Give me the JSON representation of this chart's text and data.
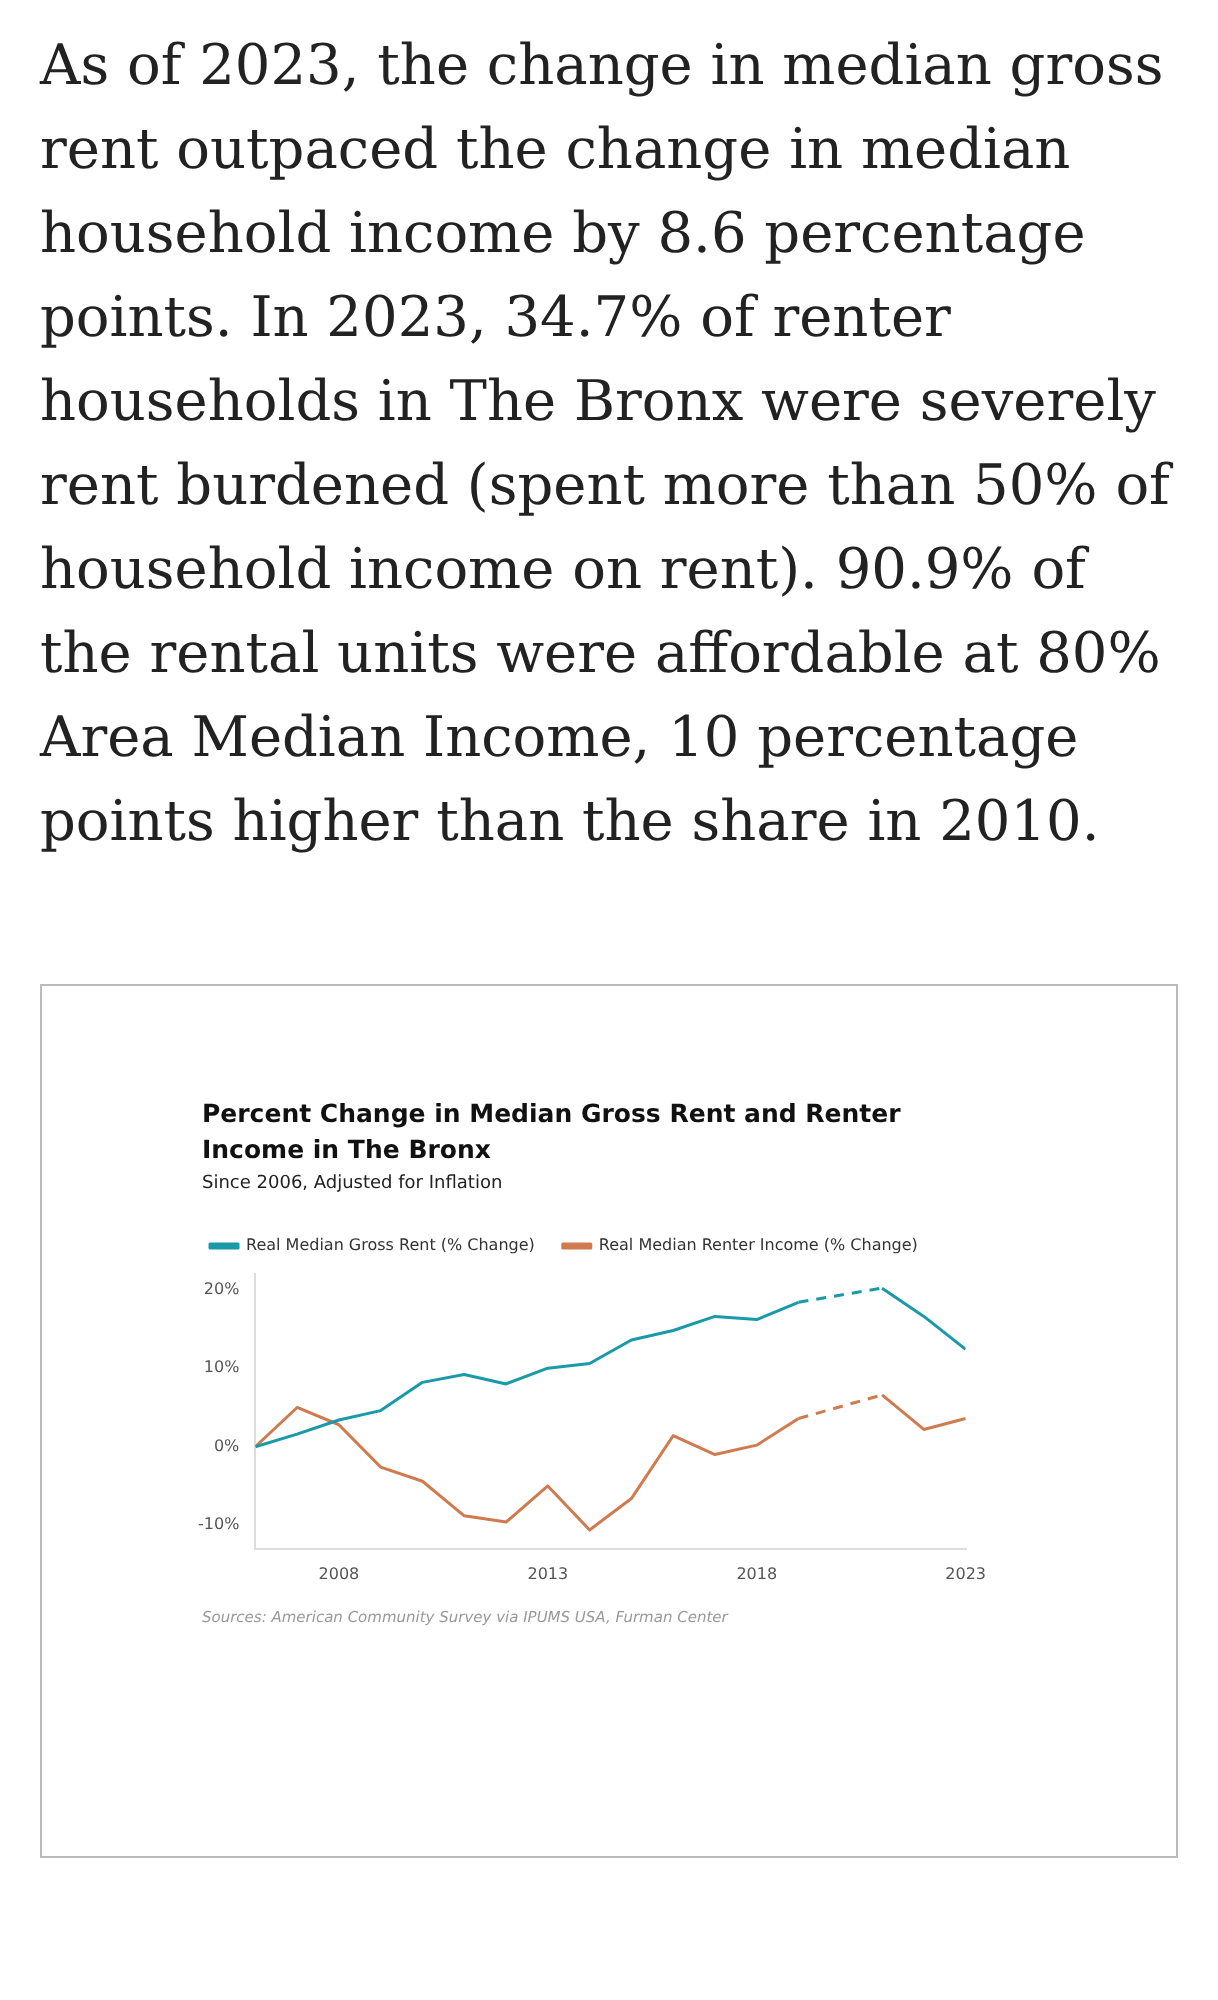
{
  "chart_data": {
    "type": "line",
    "title": "Percent Change in Median Gross Rent and Renter Income in The Bronx",
    "subtitle": "Since 2006, Adjusted for Inflation",
    "annotations": [
      "As of 2023, the change in median gross rent outpaced the change in median household income by 8.6 percentage points. In 2023, 34.7% of renter households in The Bronx were severely rent burdened (spent more than 50% of household income on rent). 90.9% of the rental units were affordable at 80% Area Median Income, 10 percentage points higher than the share in 2010.",
      "Sources: American Community Survey via IPUMS USA, Furman Center"
    ],
    "x": [
      2006,
      2007,
      2008,
      2009,
      2010,
      2011,
      2012,
      2013,
      2014,
      2015,
      2016,
      2017,
      2018,
      2019,
      2020,
      2021,
      2022,
      2023
    ],
    "series": [
      {
        "name": "Real Median Gross Rent (% Change)",
        "color": "#1a9aa8",
        "values": [
          0,
          1.6,
          3.4,
          4.6,
          8.2,
          9.2,
          8.0,
          10.0,
          10.6,
          13.6,
          14.8,
          16.6,
          16.2,
          18.4,
          null,
          20.2,
          16.6,
          12.4
        ]
      },
      {
        "name": "Real Median Renter Income (% Change)",
        "color": "#d07a4f",
        "values": [
          0,
          5.0,
          2.8,
          -2.6,
          -4.4,
          -8.8,
          -9.6,
          -5.0,
          -10.6,
          -6.6,
          1.4,
          -1.0,
          0.2,
          3.6,
          null,
          6.6,
          2.2,
          3.6
        ]
      }
    ],
    "xlim": [
      2006,
      2023
    ],
    "xticks": [
      2008,
      2013,
      2018,
      2023
    ],
    "ylim": [
      -13,
      22
    ],
    "yticks": [
      {
        "value": -10,
        "label": "-10%"
      },
      {
        "value": 0,
        "label": "0%"
      },
      {
        "value": 10,
        "label": "10%"
      },
      {
        "value": 20,
        "label": "20%"
      }
    ],
    "grid": false,
    "legend": "top left",
    "line_style": "solid"
  }
}
